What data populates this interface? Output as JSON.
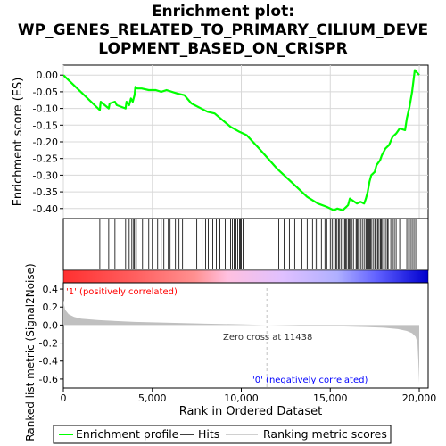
{
  "chart_data": {
    "type": "line",
    "title_lines": [
      "Enrichment plot:",
      "WP_GENES_RELATED_TO_PRIMARY_CILIUM_DEVE",
      "LOPMENT_BASED_ON_CRISPR"
    ],
    "colors": {
      "es_line": "#00ff00",
      "hits": "#000000",
      "metric_fill": "#c0c0c0",
      "zero_line": "#c0c0c0",
      "pos_label": "#ff0000",
      "neg_label": "#0000ff"
    },
    "es_panel": {
      "ylabel": "Enrichment score (ES)",
      "ylim": [
        -0.43,
        0.03
      ],
      "yticks": [
        0.0,
        -0.05,
        -0.1,
        -0.15,
        -0.2,
        -0.25,
        -0.3,
        -0.35,
        -0.4
      ],
      "ytick_labels": [
        "0.00",
        "-0.05",
        "-0.10",
        "-0.15",
        "-0.20",
        "-0.25",
        "-0.30",
        "-0.35",
        "-0.40"
      ],
      "grid": true,
      "series": [
        {
          "name": "Enrichment profile",
          "x": [
            0,
            2050,
            2100,
            2550,
            2600,
            2900,
            3000,
            3500,
            3550,
            3700,
            3800,
            3900,
            4000,
            4050,
            4150,
            4400,
            4800,
            5200,
            5500,
            5800,
            6100,
            6400,
            6800,
            7200,
            8100,
            8500,
            9400,
            9900,
            10300,
            11000,
            12000,
            13000,
            13700,
            14300,
            14800,
            15200,
            15400,
            15700,
            15900,
            16000,
            16100,
            16500,
            16700,
            16900,
            17000,
            17100,
            17200,
            17300,
            17500,
            17600,
            17800,
            17900,
            18100,
            18300,
            18500,
            18700,
            18900,
            19200,
            19300,
            19450,
            19600,
            19750,
            20000
          ],
          "y": [
            0.0,
            -0.105,
            -0.08,
            -0.1,
            -0.085,
            -0.08,
            -0.09,
            -0.1,
            -0.08,
            -0.09,
            -0.07,
            -0.08,
            -0.06,
            -0.035,
            -0.04,
            -0.04,
            -0.045,
            -0.045,
            -0.05,
            -0.045,
            -0.05,
            -0.055,
            -0.06,
            -0.085,
            -0.11,
            -0.115,
            -0.155,
            -0.17,
            -0.18,
            -0.22,
            -0.28,
            -0.33,
            -0.365,
            -0.385,
            -0.395,
            -0.405,
            -0.4,
            -0.405,
            -0.395,
            -0.39,
            -0.37,
            -0.385,
            -0.38,
            -0.385,
            -0.37,
            -0.35,
            -0.32,
            -0.3,
            -0.29,
            -0.27,
            -0.255,
            -0.24,
            -0.22,
            -0.21,
            -0.185,
            -0.175,
            -0.16,
            -0.165,
            -0.13,
            -0.095,
            -0.05,
            0.015,
            0.0
          ]
        }
      ]
    },
    "hits_panel": {
      "hit_positions": [
        2050,
        2550,
        2900,
        3500,
        3700,
        3850,
        3950,
        4000,
        4100,
        4450,
        4800,
        5000,
        5300,
        5500,
        5650,
        5900,
        6000,
        6300,
        6500,
        6700,
        7500,
        7800,
        8000,
        8150,
        8300,
        8400,
        8600,
        8800,
        9100,
        9400,
        9500,
        9600,
        9700,
        9800,
        9900,
        9950,
        10000,
        10100,
        12100,
        12400,
        12700,
        13000,
        13400,
        13700,
        14000,
        14200,
        14300,
        14500,
        14700,
        14800,
        15000,
        15100,
        15200,
        15300,
        15350,
        15450,
        15500,
        15600,
        15700,
        15800,
        15850,
        15900,
        16000,
        16050,
        16100,
        16200,
        16300,
        16450,
        16500,
        16550,
        16700,
        16800,
        16900,
        17000,
        17050,
        17100,
        17150,
        17200,
        17250,
        17300,
        17400,
        17500,
        17550,
        17650,
        17700,
        17800,
        17850,
        17900,
        18000,
        18100,
        18200,
        18250,
        18400,
        18500,
        18600,
        18700,
        18900,
        19300,
        19400,
        19500,
        19600,
        19700,
        19800
      ],
      "color_bar_gradient": [
        "#ff3030",
        "#ff6060",
        "#ff9090",
        "#ffc0e0",
        "#e0c0ff",
        "#b0b0ff",
        "#6060ff",
        "#2020e0",
        "#0000cc"
      ],
      "color_bar_stops": [
        0.0,
        0.2,
        0.36,
        0.45,
        0.6,
        0.75,
        0.86,
        0.95,
        1.0
      ]
    },
    "metric_panel": {
      "ylabel": "Ranked list metric (Signal2Noise)",
      "ylim": [
        -0.7,
        0.47
      ],
      "yticks": [
        0.4,
        0.2,
        0.0,
        -0.2,
        -0.4,
        -0.6
      ],
      "ytick_labels": [
        "0.4",
        "0.2",
        "0.0",
        "-0.2",
        "-0.4",
        "-0.6"
      ],
      "profile_x": [
        0,
        100,
        300,
        600,
        1000,
        2000,
        4000,
        6000,
        8000,
        10000,
        11438,
        13000,
        15000,
        17000,
        18000,
        18800,
        19300,
        19600,
        19800,
        19900,
        19950,
        20000
      ],
      "profile_y": [
        0.27,
        0.17,
        0.12,
        0.09,
        0.07,
        0.055,
        0.035,
        0.025,
        0.015,
        0.008,
        0.0,
        -0.005,
        -0.012,
        -0.022,
        -0.03,
        -0.045,
        -0.065,
        -0.09,
        -0.13,
        -0.2,
        -0.4,
        -0.65
      ],
      "zero_cross_label": "Zero cross at 11438",
      "zero_cross_x": 11438,
      "pos_label": "'1' (positively correlated)",
      "neg_label": "'0' (negatively correlated)"
    },
    "xaxis": {
      "xlabel": "Rank in Ordered Dataset",
      "xlim": [
        0,
        20500
      ],
      "xticks": [
        0,
        5000,
        10000,
        15000,
        20000
      ],
      "xtick_labels": [
        "0",
        "5,000",
        "10,000",
        "15,000",
        "20,000"
      ]
    },
    "legend": {
      "placement": "bottom",
      "entries": [
        {
          "label": "Enrichment profile",
          "color": "#00ff00"
        },
        {
          "label": "Hits",
          "color": "#000000"
        },
        {
          "label": "Ranking metric scores",
          "color": "#c0c0c0"
        }
      ]
    }
  }
}
